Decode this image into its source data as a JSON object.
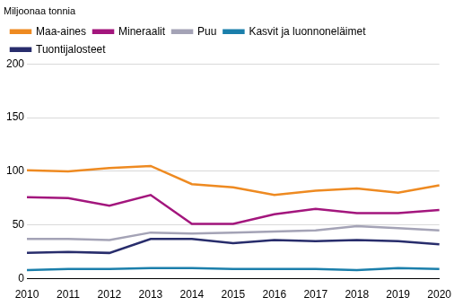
{
  "chart_data": {
    "type": "line",
    "y_label": "Miljoonaa tonnia",
    "categories": [
      "2010",
      "2011",
      "2012",
      "2013",
      "2014",
      "2015",
      "2016",
      "2017",
      "2018",
      "2019",
      "2020"
    ],
    "series": [
      {
        "name": "Maa-aines",
        "color": "#ee8a21",
        "values": [
          101,
          100,
          103,
          105,
          88,
          85,
          78,
          82,
          84,
          80,
          87
        ]
      },
      {
        "name": "Mineraalit",
        "color": "#a3167d",
        "values": [
          76,
          75,
          68,
          78,
          51,
          51,
          60,
          65,
          61,
          61,
          64
        ]
      },
      {
        "name": "Puu",
        "color": "#a4a3b6",
        "values": [
          37,
          37,
          36,
          43,
          42,
          43,
          44,
          45,
          49,
          47,
          45
        ]
      },
      {
        "name": "Kasvit ja luonnoneläimet",
        "color": "#1b7fab",
        "values": [
          8,
          9,
          9,
          10,
          10,
          9,
          9,
          9,
          8,
          10,
          9
        ]
      },
      {
        "name": "Tuontijalosteet",
        "color": "#282d6c",
        "values": [
          24,
          25,
          24,
          37,
          37,
          33,
          36,
          35,
          36,
          35,
          32
        ]
      }
    ],
    "ylim": [
      0,
      200
    ],
    "yticks": [
      0,
      50,
      100,
      150,
      200
    ],
    "grid": true,
    "legend": "top"
  }
}
